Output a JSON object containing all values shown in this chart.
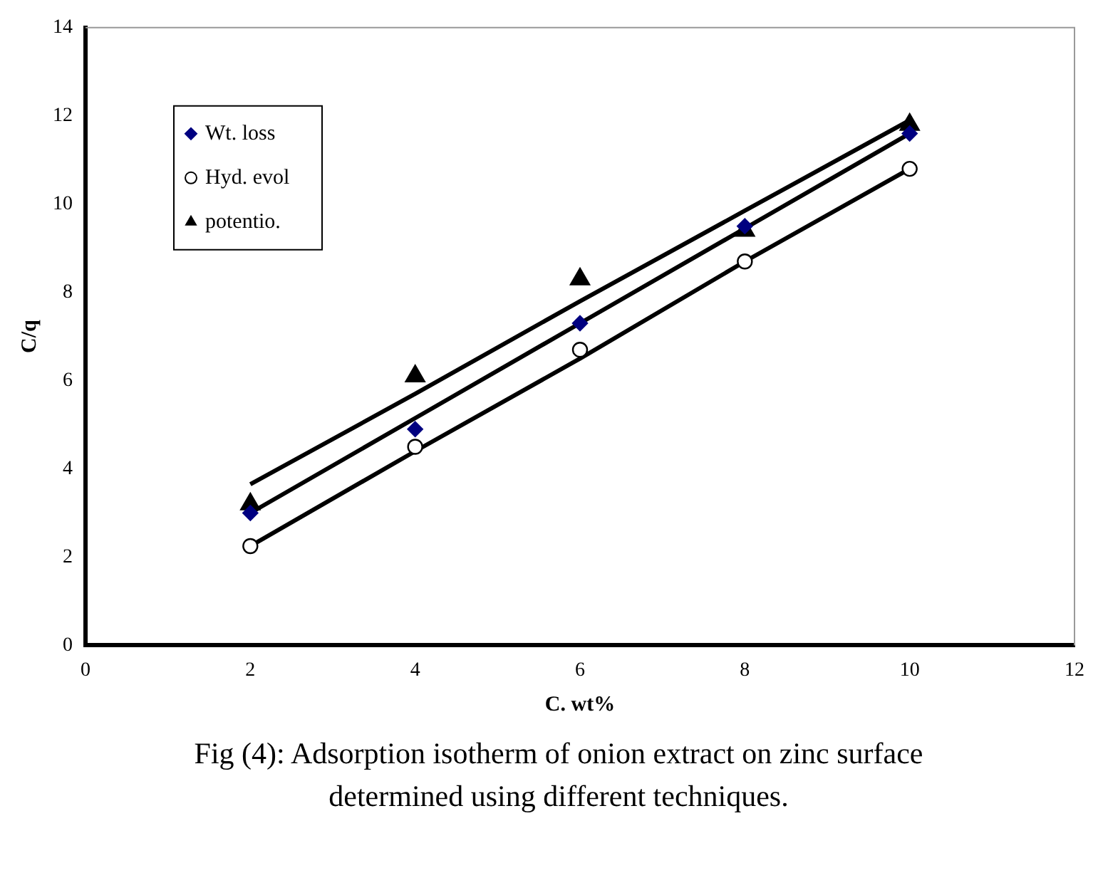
{
  "chart_data": {
    "type": "scatter",
    "xlabel": "C. wt%",
    "ylabel": "C/q",
    "annotations": [
      "Fig (4): Adsorption isotherm of onion extract on zinc  surface determined using different techniques."
    ],
    "x": [
      2,
      4,
      6,
      8,
      10
    ],
    "series": [
      {
        "name": "Wt. loss",
        "color": "#000080",
        "marker": "diamond",
        "values": [
          3.0,
          4.9,
          7.3,
          9.5,
          11.6
        ]
      },
      {
        "name": "Hyd. evol",
        "color": "#000000",
        "marker": "circle",
        "values": [
          2.25,
          4.5,
          6.7,
          8.7,
          10.8
        ]
      },
      {
        "name": "potentio.",
        "color": "#000000",
        "marker": "triangle",
        "values": [
          3.2,
          6.1,
          8.3,
          9.4,
          11.8
        ]
      },
      {
        "type": "line",
        "color": "#000000",
        "marker": "none",
        "values": [
          3.0,
          5.15,
          7.3,
          9.45,
          11.6
        ]
      },
      {
        "type": "line",
        "color": "#000000",
        "marker": "none",
        "values": [
          2.25,
          4.4,
          6.5,
          8.7,
          10.8
        ]
      },
      {
        "type": "line",
        "color": "#000000",
        "marker": "none",
        "values": [
          3.65,
          5.7,
          7.8,
          9.85,
          11.9
        ]
      }
    ],
    "xlim": [
      0,
      12
    ],
    "xticks": [
      0,
      2,
      4,
      6,
      8,
      10,
      12
    ],
    "ylim": [
      0,
      14
    ],
    "yticks": [
      0,
      2,
      4,
      6,
      8,
      10,
      12,
      14
    ],
    "grid": false,
    "legend": "top left"
  }
}
